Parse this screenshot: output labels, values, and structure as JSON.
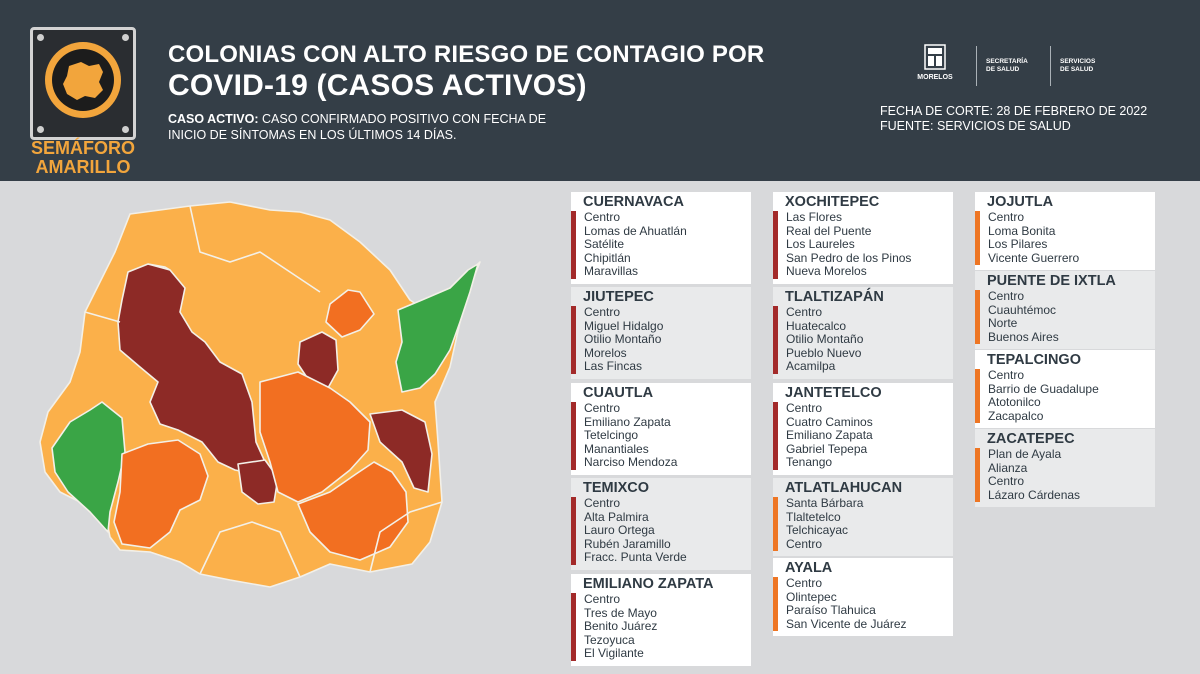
{
  "badge": {
    "line1": "SEMÁFORO",
    "line2": "AMARILLO"
  },
  "title": {
    "line1": "COLONIAS CON ALTO RIESGO DE CONTAGIO POR",
    "line2": "COVID-19 (CASOS ACTIVOS)"
  },
  "definition": {
    "term": "CASO ACTIVO:",
    "text": " CASO CONFIRMADO POSITIVO CON FECHA DE",
    "text2": "INICIO DE SÍNTOMAS EN LOS ÚLTIMOS 14 DÍAS."
  },
  "logos": {
    "morelos": "MORELOS",
    "secretaria_1": "SECRETARÍA",
    "secretaria_2": "DE SALUD",
    "servicios_1": "SERVICIOS",
    "servicios_2": "DE SALUD"
  },
  "meta": {
    "fecha": "FECHA DE CORTE: 28 DE FEBRERO DE 2022",
    "fuente": "FUENTE: SERVICIOS DE SALUD"
  },
  "colors": {
    "header_bg": "#343e47",
    "semaforo_text": "#f2a53c",
    "dark_red": "#8d2a26",
    "orange": "#f26f21",
    "light_orange": "#fbb04a",
    "green": "#3aa546",
    "bar_red": "#a32a2a",
    "bar_orange": "#ee7624"
  },
  "municipalities": [
    {
      "name": "CUERNAVACA",
      "color": "#a32a2a",
      "colonias": [
        "Centro",
        "Lomas de Ahuatlán",
        "Satélite",
        "Chipitlán",
        "Maravillas"
      ]
    },
    {
      "name": "JIUTEPEC",
      "color": "#a32a2a",
      "colonias": [
        "Centro",
        "Miguel Hidalgo",
        "Otilio Montaño",
        "Morelos",
        "Las Fincas"
      ]
    },
    {
      "name": "CUAUTLA",
      "color": "#a32a2a",
      "colonias": [
        "Centro",
        "Emiliano Zapata",
        "Tetelcingo",
        "Manantiales",
        "Narciso Mendoza"
      ]
    },
    {
      "name": "TEMIXCO",
      "color": "#a32a2a",
      "colonias": [
        "Centro",
        "Alta Palmira",
        "Lauro Ortega",
        "Rubén Jaramillo",
        "Fracc. Punta Verde"
      ]
    },
    {
      "name": "EMILIANO ZAPATA",
      "color": "#a32a2a",
      "colonias": [
        "Centro",
        "Tres de Mayo",
        "Benito Juárez",
        "Tezoyuca",
        "El Vigilante"
      ]
    },
    {
      "name": "XOCHITEPEC",
      "color": "#a32a2a",
      "colonias": [
        "Las Flores",
        "Real del Puente",
        "Los Laureles",
        "San Pedro de los Pinos",
        "Nueva Morelos"
      ]
    },
    {
      "name": "TLALTIZAPÁN",
      "color": "#a32a2a",
      "colonias": [
        "Centro",
        "Huatecalco",
        "Otilio Montaño",
        "Pueblo Nuevo",
        "Acamilpa"
      ]
    },
    {
      "name": "JANTETELCO",
      "color": "#a32a2a",
      "colonias": [
        "Centro",
        "Cuatro Caminos",
        "Emiliano Zapata",
        "Gabriel Tepepa",
        "Tenango"
      ]
    },
    {
      "name": "ATLATLAHUCAN",
      "color": "#ee7624",
      "colonias": [
        "Santa Bárbara",
        "Tlaltetelco",
        "Telchicayac",
        "Centro"
      ]
    },
    {
      "name": "AYALA",
      "color": "#ee7624",
      "colonias": [
        "Centro",
        "Olintepec",
        "Paraíso Tlahuica",
        "San Vicente de Juárez"
      ]
    },
    {
      "name": "JOJUTLA",
      "color": "#ee7624",
      "colonias": [
        "Centro",
        "Loma Bonita",
        "Los Pilares",
        "Vicente Guerrero"
      ]
    },
    {
      "name": "PUENTE DE IXTLA",
      "color": "#ee7624",
      "colonias": [
        "Centro",
        "Cuauhtémoc",
        "Norte",
        "Buenos Aires"
      ]
    },
    {
      "name": "TEPALCINGO",
      "color": "#ee7624",
      "colonias": [
        "Centro",
        "Barrio de Guadalupe",
        "Atotonilco",
        "Zacapalco"
      ]
    },
    {
      "name": "ZACATEPEC",
      "color": "#ee7624",
      "colonias": [
        "Plan de Ayala",
        "Alianza",
        "Centro",
        "Lázaro Cárdenas"
      ]
    }
  ]
}
